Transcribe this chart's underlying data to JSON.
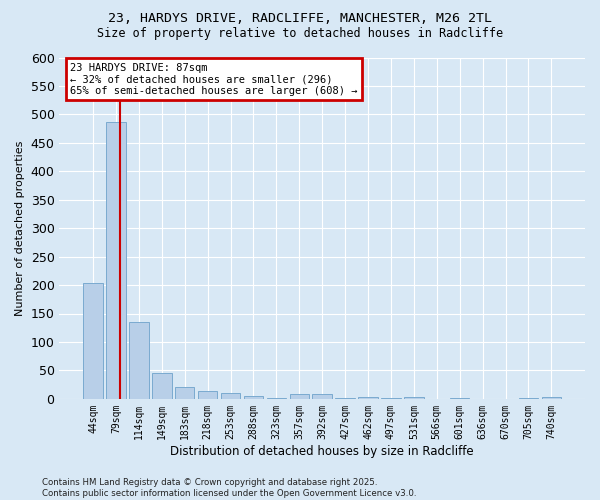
{
  "title_line1": "23, HARDYS DRIVE, RADCLIFFE, MANCHESTER, M26 2TL",
  "title_line2": "Size of property relative to detached houses in Radcliffe",
  "xlabel": "Distribution of detached houses by size in Radcliffe",
  "ylabel": "Number of detached properties",
  "categories": [
    "44sqm",
    "79sqm",
    "114sqm",
    "149sqm",
    "183sqm",
    "218sqm",
    "253sqm",
    "288sqm",
    "323sqm",
    "357sqm",
    "392sqm",
    "427sqm",
    "462sqm",
    "497sqm",
    "531sqm",
    "566sqm",
    "601sqm",
    "636sqm",
    "670sqm",
    "705sqm",
    "740sqm"
  ],
  "values": [
    203,
    487,
    135,
    46,
    20,
    13,
    11,
    5,
    1,
    8,
    9,
    2,
    4,
    1,
    4,
    0,
    2,
    0,
    0,
    1,
    3
  ],
  "bar_color": "#b8cfe8",
  "bar_edge_color": "#7aaad0",
  "annotation_text": "23 HARDYS DRIVE: 87sqm\n← 32% of detached houses are smaller (296)\n65% of semi-detached houses are larger (608) →",
  "annotation_box_edge_color": "#cc0000",
  "background_color": "#d8e8f5",
  "plot_bg_color": "#d8e8f5",
  "ylim": [
    0,
    600
  ],
  "yticks": [
    0,
    50,
    100,
    150,
    200,
    250,
    300,
    350,
    400,
    450,
    500,
    550,
    600
  ],
  "footer_line1": "Contains HM Land Registry data © Crown copyright and database right 2025.",
  "footer_line2": "Contains public sector information licensed under the Open Government Licence v3.0.",
  "grid_color": "#ffffff",
  "vline_color": "#cc0000",
  "vline_x": 1.18
}
